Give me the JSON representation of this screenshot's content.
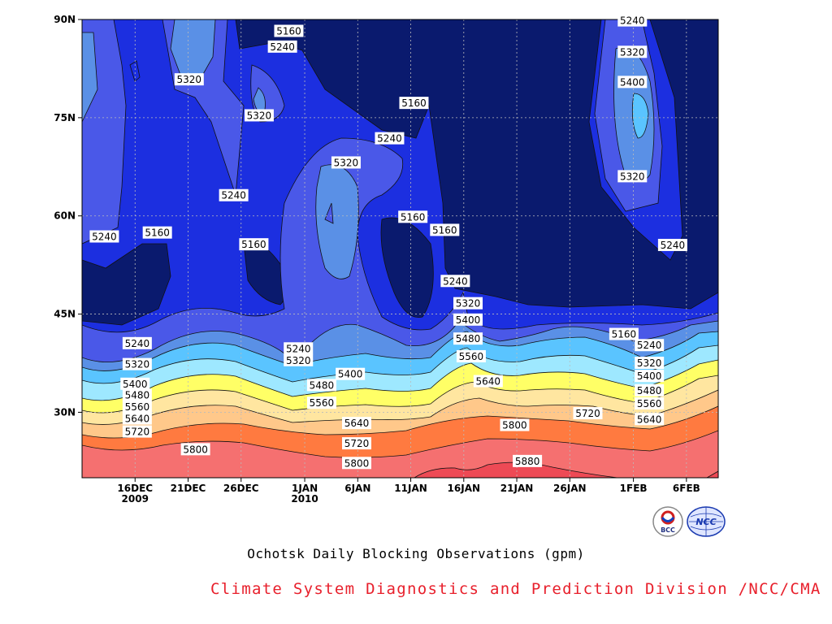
{
  "colors": {
    "credit_text": "#e8202c",
    "levels": [
      "#0a1a6e",
      "#1c2fe0",
      "#4a58e8",
      "#5a90e6",
      "#5ac4ff",
      "#9ee8ff",
      "#ffff66",
      "#ffe6a0",
      "#ffc88a",
      "#ffa066",
      "#ff7a40",
      "#f57070",
      "#ee4a55"
    ]
  },
  "chart_data": {
    "type": "heatmap",
    "title": "",
    "xlabel": "",
    "ylabel": "",
    "x_ticks": [
      {
        "label": "16DEC",
        "sub": "2009",
        "day": 16
      },
      {
        "label": "21DEC",
        "sub": "",
        "day": 21
      },
      {
        "label": "26DEC",
        "sub": "",
        "day": 26
      },
      {
        "label": "1JAN",
        "sub": "2010",
        "day": 32
      },
      {
        "label": "6JAN",
        "sub": "",
        "day": 37
      },
      {
        "label": "11JAN",
        "sub": "",
        "day": 42
      },
      {
        "label": "16JAN",
        "sub": "",
        "day": 47
      },
      {
        "label": "21JAN",
        "sub": "",
        "day": 52
      },
      {
        "label": "26JAN",
        "sub": "",
        "day": 57
      },
      {
        "label": "1FEB",
        "sub": "",
        "day": 63
      },
      {
        "label": "6FEB",
        "sub": "",
        "day": 68
      }
    ],
    "x_range_days": [
      11,
      71
    ],
    "y_ticks": [
      {
        "label": "90N",
        "lat": 90
      },
      {
        "label": "75N",
        "lat": 75
      },
      {
        "label": "60N",
        "lat": 60
      },
      {
        "label": "45N",
        "lat": 45
      },
      {
        "label": "30N",
        "lat": 30
      }
    ],
    "y_range_lat": [
      20,
      90
    ],
    "contour_levels": [
      5160,
      5240,
      5320,
      5400,
      5480,
      5560,
      5640,
      5720,
      5800,
      5880
    ],
    "contour_labels": [
      {
        "text": "5160",
        "day": 30.5,
        "lat": 88.2
      },
      {
        "text": "5240",
        "day": 29.9,
        "lat": 85.8
      },
      {
        "text": "5320",
        "day": 21.1,
        "lat": 80.8
      },
      {
        "text": "5320",
        "day": 27.7,
        "lat": 75.3
      },
      {
        "text": "5160",
        "day": 42.3,
        "lat": 77.2
      },
      {
        "text": "5240",
        "day": 40.0,
        "lat": 71.8
      },
      {
        "text": "5320",
        "day": 35.9,
        "lat": 68.1
      },
      {
        "text": "5240",
        "day": 25.3,
        "lat": 63.1
      },
      {
        "text": "5160",
        "day": 42.2,
        "lat": 59.8
      },
      {
        "text": "5160",
        "day": 45.2,
        "lat": 57.8
      },
      {
        "text": "5240",
        "day": 13.1,
        "lat": 56.8
      },
      {
        "text": "5160",
        "day": 18.1,
        "lat": 57.4
      },
      {
        "text": "5160",
        "day": 27.2,
        "lat": 55.6
      },
      {
        "text": "5240",
        "day": 46.2,
        "lat": 50.0
      },
      {
        "text": "5320",
        "day": 47.4,
        "lat": 46.6
      },
      {
        "text": "5400",
        "day": 47.4,
        "lat": 44.1
      },
      {
        "text": "5480",
        "day": 47.4,
        "lat": 41.2
      },
      {
        "text": "5560",
        "day": 47.7,
        "lat": 38.5
      },
      {
        "text": "5640",
        "day": 49.3,
        "lat": 34.7
      },
      {
        "text": "5240",
        "day": 16.2,
        "lat": 40.5
      },
      {
        "text": "5320",
        "day": 16.2,
        "lat": 37.3
      },
      {
        "text": "5400",
        "day": 16.0,
        "lat": 34.3
      },
      {
        "text": "5480",
        "day": 16.2,
        "lat": 32.6
      },
      {
        "text": "5560",
        "day": 16.2,
        "lat": 30.8
      },
      {
        "text": "5640",
        "day": 16.2,
        "lat": 29.0
      },
      {
        "text": "5720",
        "day": 16.2,
        "lat": 27.0
      },
      {
        "text": "5800",
        "day": 21.7,
        "lat": 24.3
      },
      {
        "text": "5240",
        "day": 31.4,
        "lat": 39.7
      },
      {
        "text": "5320",
        "day": 31.4,
        "lat": 37.9
      },
      {
        "text": "5400",
        "day": 36.3,
        "lat": 35.8
      },
      {
        "text": "5480",
        "day": 33.6,
        "lat": 34.1
      },
      {
        "text": "5560",
        "day": 33.6,
        "lat": 31.4
      },
      {
        "text": "5640",
        "day": 36.9,
        "lat": 28.3
      },
      {
        "text": "5720",
        "day": 36.9,
        "lat": 25.2
      },
      {
        "text": "5800",
        "day": 36.9,
        "lat": 22.2
      },
      {
        "text": "5800",
        "day": 51.8,
        "lat": 28.0
      },
      {
        "text": "5880",
        "day": 53.0,
        "lat": 22.5
      },
      {
        "text": "5720",
        "day": 58.7,
        "lat": 29.8
      },
      {
        "text": "5240",
        "day": 62.9,
        "lat": 89.8
      },
      {
        "text": "5320",
        "day": 62.9,
        "lat": 85.0
      },
      {
        "text": "5400",
        "day": 62.9,
        "lat": 80.4
      },
      {
        "text": "5320",
        "day": 62.9,
        "lat": 66.0
      },
      {
        "text": "5240",
        "day": 66.7,
        "lat": 55.5
      },
      {
        "text": "5160",
        "day": 62.1,
        "lat": 41.9
      },
      {
        "text": "5240",
        "day": 64.5,
        "lat": 40.2
      },
      {
        "text": "5320",
        "day": 64.5,
        "lat": 37.5
      },
      {
        "text": "5400",
        "day": 64.5,
        "lat": 35.5
      },
      {
        "text": "5480",
        "day": 64.5,
        "lat": 33.3
      },
      {
        "text": "5560",
        "day": 64.5,
        "lat": 31.3
      },
      {
        "text": "5640",
        "day": 64.5,
        "lat": 28.9
      }
    ]
  },
  "captions": {
    "main": "Ochotsk Daily Blocking Observations (gpm)",
    "credit": "Climate System Diagnostics and Prediction Division /NCC/CMA"
  },
  "logos": [
    {
      "icon": "bcc-logo-icon",
      "text": "BCC"
    },
    {
      "icon": "ncc-logo-icon",
      "text": "NCC"
    }
  ]
}
